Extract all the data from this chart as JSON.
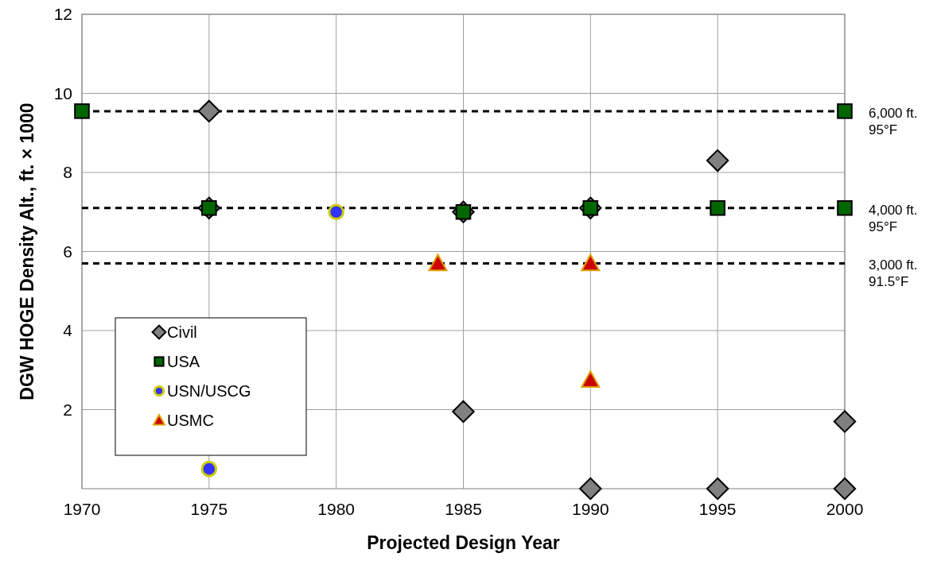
{
  "chart_data": {
    "type": "scatter",
    "xlabel": "Projected Design Year",
    "ylabel": "DGW  HOGE Density Alt., ft. × 1000",
    "xlim": [
      1970,
      2000
    ],
    "xticks": [
      1970,
      1975,
      1980,
      1985,
      1990,
      1995,
      2000
    ],
    "ylim": [
      0,
      12
    ],
    "yticks": [
      2,
      4,
      6,
      8,
      10,
      12
    ],
    "grid": true,
    "legend": "bottom left",
    "series": [
      {
        "name": "Civil",
        "color": "#808080",
        "marker": "diamond",
        "x": [
          1975,
          1975,
          1985,
          1985,
          1990,
          1990,
          1995,
          1995,
          2000,
          2000
        ],
        "values": [
          9.55,
          7.1,
          7.0,
          1.95,
          7.1,
          0,
          8.3,
          0,
          1.7,
          0
        ]
      },
      {
        "name": "USA",
        "color": "#006600",
        "marker": "square",
        "x": [
          1970,
          1975,
          1985,
          1990,
          1995,
          2000,
          2000
        ],
        "values": [
          9.55,
          7.1,
          7.0,
          7.1,
          7.1,
          9.55,
          7.1
        ]
      },
      {
        "name": "USN/USCG",
        "color": "#3333ff",
        "marker": "circle",
        "x": [
          1975,
          1980
        ],
        "values": [
          0.5,
          7.0
        ]
      },
      {
        "name": "USMC",
        "color": "#cc0000",
        "marker": "triangle",
        "x": [
          1984,
          1990,
          1990
        ],
        "values": [
          5.7,
          5.7,
          2.75
        ]
      }
    ],
    "ref_lines": [
      {
        "axis": "y",
        "value": 9.55,
        "label": "6,000 ft.\n95°F",
        "color": "#000000",
        "line_style": "dashed"
      },
      {
        "axis": "y",
        "value": 7.1,
        "label": "4,000 ft.\n95°F",
        "color": "#000000",
        "line_style": "dashed"
      },
      {
        "axis": "y",
        "value": 5.7,
        "label": "3,000 ft.\n91.5°F",
        "color": "#000000",
        "line_style": "dashed"
      }
    ]
  }
}
